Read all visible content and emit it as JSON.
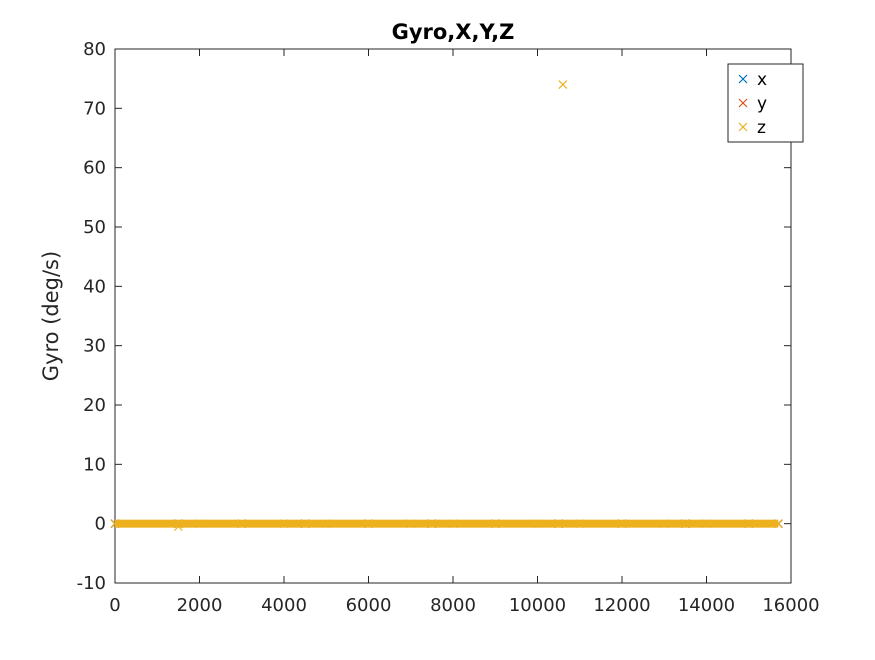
{
  "chart_data": {
    "type": "scatter",
    "title": "Gyro,X,Y,Z",
    "xlabel": "",
    "ylabel": "Gyro (deg/s)",
    "xlim": [
      0,
      16000
    ],
    "ylim": [
      -10,
      80
    ],
    "xticks": [
      0,
      2000,
      4000,
      6000,
      8000,
      10000,
      12000,
      14000,
      16000
    ],
    "yticks": [
      -10,
      0,
      10,
      20,
      30,
      40,
      50,
      60,
      70,
      80
    ],
    "grid": false,
    "legend_position": "top-right",
    "marker": "x",
    "series": [
      {
        "name": "x",
        "color": "#0072bd",
        "x": [
          0,
          1500,
          3000,
          4500,
          6000,
          7500,
          9000,
          10500,
          12000,
          13500,
          15000,
          15700
        ],
        "y": [
          0,
          0,
          0,
          0,
          0,
          0,
          0,
          0,
          0,
          0,
          0,
          0
        ]
      },
      {
        "name": "y",
        "color": "#d95319",
        "x": [
          0,
          1500,
          3000,
          4500,
          6000,
          7500,
          9000,
          10500,
          12000,
          13500,
          15000,
          15700
        ],
        "y": [
          0,
          0,
          0,
          0,
          0,
          0,
          0,
          0,
          0,
          0,
          0,
          0
        ]
      },
      {
        "name": "z",
        "color": "#edb120",
        "x": [
          0,
          1500,
          2000,
          3000,
          4000,
          5000,
          6000,
          7000,
          8000,
          9000,
          10000,
          10600,
          11000,
          12000,
          13000,
          14000,
          15000,
          15700
        ],
        "y": [
          0,
          -0.5,
          0,
          0,
          0,
          0,
          0,
          0,
          0,
          0,
          0,
          74,
          0,
          0,
          0,
          0,
          0,
          0
        ],
        "dense_band": {
          "x_range": [
            0,
            15700
          ],
          "y": 0
        }
      }
    ]
  }
}
